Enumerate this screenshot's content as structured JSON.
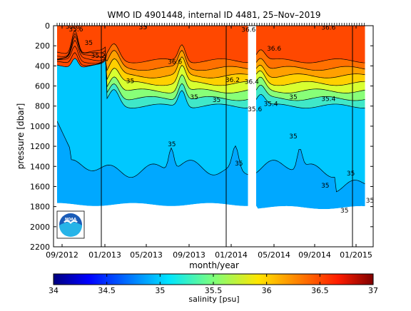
{
  "chart_data": {
    "type": "heatmap",
    "title": "WMO ID 4901448, internal ID 4481, 25–Nov–2019",
    "xlabel": "month/year",
    "ylabel": "pressure [dbar]",
    "x_ticks": [
      "09/2012",
      "01/2013",
      "05/2013",
      "09/2013",
      "01/2014",
      "05/2014",
      "09/2014",
      "01/2015"
    ],
    "y_ticks": [
      0,
      200,
      400,
      600,
      800,
      1000,
      1200,
      1400,
      1600,
      1800,
      2000,
      2200
    ],
    "ylim": [
      2200,
      0
    ],
    "y_reversed": true,
    "colorbar": {
      "label": "salinity [psu]",
      "range": [
        34,
        37
      ],
      "ticks": [
        "34",
        "34.5",
        "35",
        "35.5",
        "36",
        "36.5",
        "37"
      ]
    },
    "data_gaps": [
      "2014-03"
    ],
    "contour_levels": [
      35,
      35.2,
      35.4,
      35.6,
      35.8,
      36,
      36.2,
      36.4,
      36.6
    ],
    "bands": [
      {
        "level": 35.0,
        "color": "#00c8ff"
      },
      {
        "level": 35.2,
        "color": "#40e8c8"
      },
      {
        "level": 35.4,
        "color": "#88ff78"
      },
      {
        "level": 35.6,
        "color": "#d8ff30"
      },
      {
        "level": 35.8,
        "color": "#ffd000"
      },
      {
        "level": 36.0,
        "color": "#ffa000"
      },
      {
        "level": 36.2,
        "color": "#ff7000"
      },
      {
        "level": 36.4,
        "color": "#ff4800"
      }
    ],
    "below_35_color": "#00a8ff",
    "contour_labels": [
      {
        "text": "35.8",
        "x": 0.06,
        "y": 30
      },
      {
        "text": "35.6",
        "x": 0.07,
        "y": 55
      },
      {
        "text": "35",
        "x": 0.28,
        "y": 35
      },
      {
        "text": "35",
        "x": 0.11,
        "y": 190
      },
      {
        "text": "35.2",
        "x": 0.14,
        "y": 320
      },
      {
        "text": "35",
        "x": 0.24,
        "y": 570
      },
      {
        "text": "35",
        "x": 0.44,
        "y": 730
      },
      {
        "text": "35",
        "x": 0.51,
        "y": 760
      },
      {
        "text": "36.6",
        "x": 0.38,
        "y": 380
      },
      {
        "text": "36.6",
        "x": 0.61,
        "y": 60
      },
      {
        "text": "36.6",
        "x": 0.69,
        "y": 250
      },
      {
        "text": "36.6",
        "x": 0.86,
        "y": 40
      },
      {
        "text": "36.4",
        "x": 0.62,
        "y": 580
      },
      {
        "text": "36.2",
        "x": 0.56,
        "y": 560
      },
      {
        "text": "35.6",
        "x": 0.63,
        "y": 850
      },
      {
        "text": "35.4",
        "x": 0.68,
        "y": 800
      },
      {
        "text": "35.4",
        "x": 0.86,
        "y": 750
      },
      {
        "text": "35",
        "x": 0.37,
        "y": 1200
      },
      {
        "text": "35",
        "x": 0.75,
        "y": 730
      },
      {
        "text": "35",
        "x": 0.75,
        "y": 1120
      },
      {
        "text": "35",
        "x": 0.58,
        "y": 1390
      },
      {
        "text": "35",
        "x": 0.93,
        "y": 1490
      },
      {
        "text": "35",
        "x": 0.99,
        "y": 1760
      },
      {
        "text": "35",
        "x": 0.85,
        "y": 1610
      },
      {
        "text": "35",
        "x": 0.91,
        "y": 1860
      }
    ]
  },
  "logo": {
    "text": "NOAA"
  },
  "colors": {
    "deep": "#00a8ff",
    "surface": "#ff4800",
    "gap": "#ffffff",
    "missing": "#ffffff"
  }
}
